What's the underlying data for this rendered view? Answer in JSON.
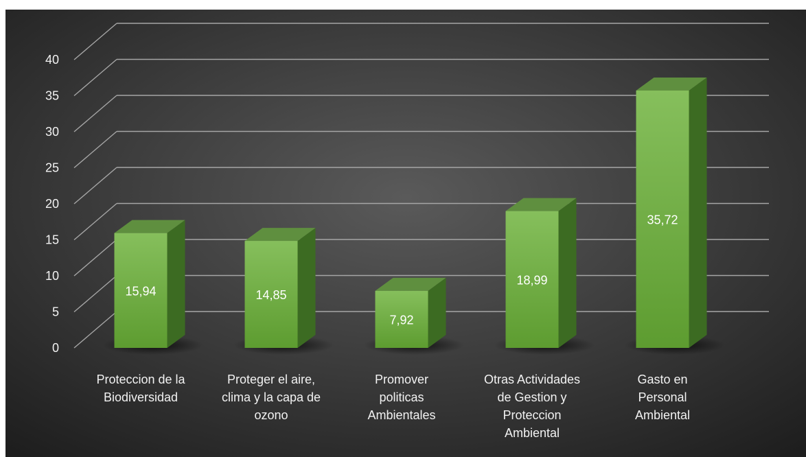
{
  "chart_data": {
    "type": "bar",
    "categories": [
      [
        "Proteccion de la",
        "Biodiversidad"
      ],
      [
        "Proteger el aire,",
        "clima y la capa de",
        "ozono"
      ],
      [
        "Promover",
        "politicas",
        "Ambientales"
      ],
      [
        "Otras Actividades",
        "de Gestion y",
        "Proteccion",
        "Ambiental"
      ],
      [
        "Gasto en",
        "Personal",
        "Ambiental"
      ]
    ],
    "values": [
      15.94,
      14.85,
      7.92,
      18.99,
      35.72
    ],
    "value_labels": [
      "15,94",
      "14,85",
      "7,92",
      "18,99",
      "35,72"
    ],
    "y_ticks": [
      0,
      5,
      10,
      15,
      20,
      25,
      30,
      35,
      40
    ],
    "ylim": [
      0,
      40
    ],
    "grid": true,
    "style": "3d-column",
    "colors": {
      "background_center": "#5a5a5a",
      "background_edge": "#1e1e1e",
      "bar_front_top": "#86bf5c",
      "bar_front_bottom": "#5d9c30",
      "bar_top": "#5f8f3f",
      "bar_side": "#3c6b22",
      "gridline": "#a6a6a6",
      "text": "#f2f2f2"
    }
  }
}
